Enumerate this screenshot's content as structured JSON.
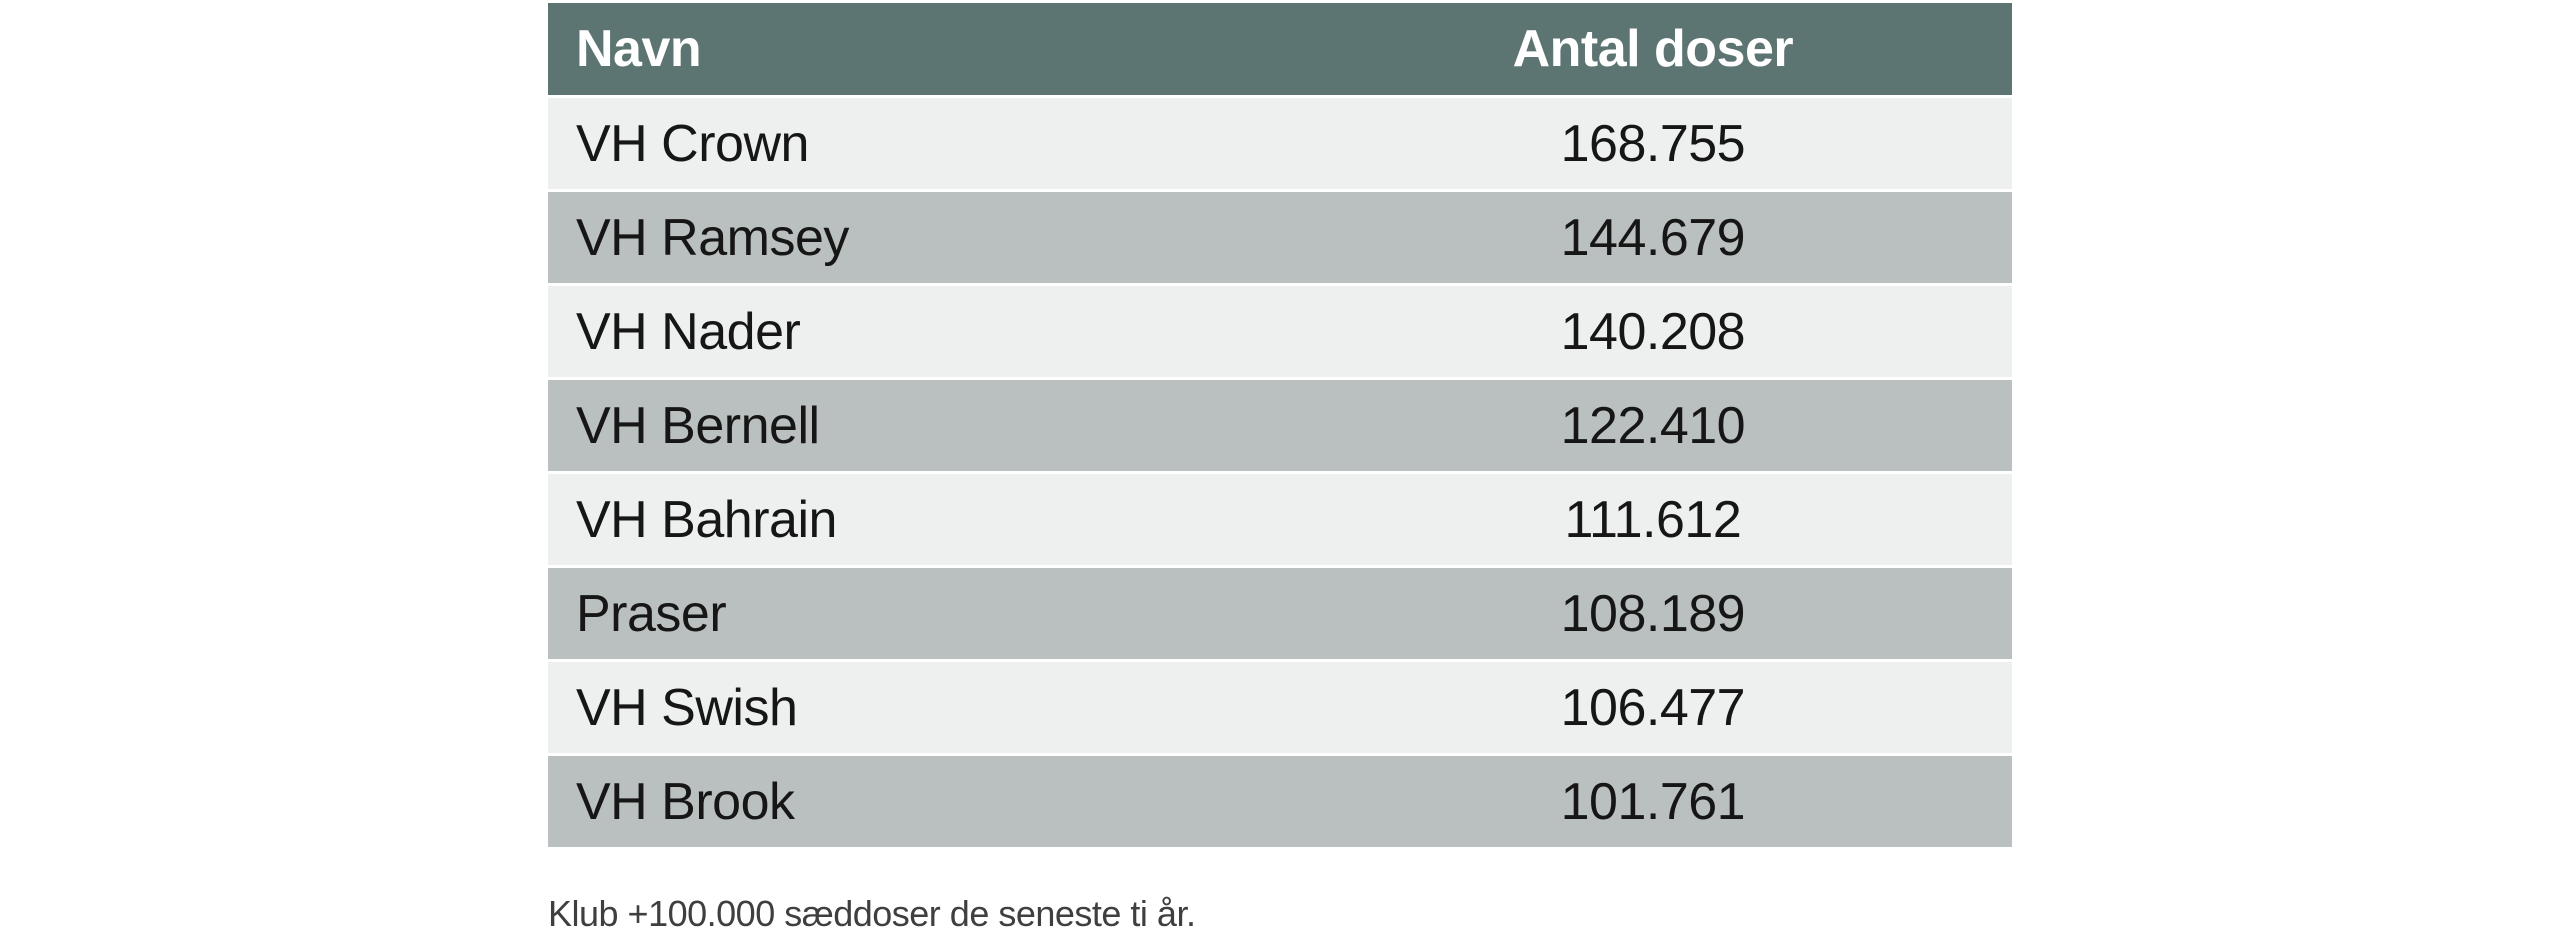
{
  "figure": {
    "header": {
      "name_label": "Navn",
      "doses_label": "Antal doser"
    },
    "rows": [
      {
        "name": "VH Crown",
        "doses": "168.755"
      },
      {
        "name": "VH Ramsey",
        "doses": "144.679"
      },
      {
        "name": "VH Nader",
        "doses": "140.208"
      },
      {
        "name": "VH Bernell",
        "doses": "122.410"
      },
      {
        "name": "VH Bahrain",
        "doses": "111.612"
      },
      {
        "name": "Praser",
        "doses": "108.189"
      },
      {
        "name": "VH Swish",
        "doses": "106.477"
      },
      {
        "name": "VH Brook",
        "doses": "101.761"
      }
    ],
    "caption": "Klub +100.000 sæddoser de seneste ti år."
  },
  "colors": {
    "header_bg": "#5d7572",
    "header_text": "#ffffff",
    "row_light": "#eef0ef",
    "row_dark": "#bac0bf",
    "row_text": "#161616",
    "caption_text": "#3f3f3f"
  },
  "chart_data": {
    "type": "table",
    "title": "",
    "columns": [
      "Navn",
      "Antal doser"
    ],
    "rows": [
      [
        "VH Crown",
        168755
      ],
      [
        "VH Ramsey",
        144679
      ],
      [
        "VH Nader",
        140208
      ],
      [
        "VH Bernell",
        122410
      ],
      [
        "VH Bahrain",
        111612
      ],
      [
        "Praser",
        108189
      ],
      [
        "VH Swish",
        106477
      ],
      [
        "VH Brook",
        101761
      ]
    ],
    "caption": "Klub +100.000 sæddoser de seneste ti år.",
    "layout_hints": {
      "header_style": "sage-green background, bold white text",
      "row_style": "alternating light-grey / grey-green rows separated by thin white lines",
      "value_alignment": "center",
      "name_alignment": "left"
    }
  }
}
